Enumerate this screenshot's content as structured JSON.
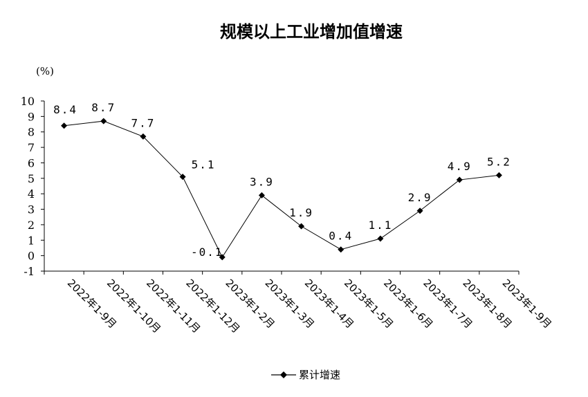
{
  "chart_data": {
    "type": "line",
    "title": "规模以上工业增加值增速",
    "unit_label": "(%)",
    "categories": [
      "2022年1-9月",
      "2022年1-10月",
      "2022年1-11月",
      "2022年1-12月",
      "2023年1-2月",
      "2023年1-3月",
      "2023年1-4月",
      "2023年1-5月",
      "2023年1-6月",
      "2023年1-7月",
      "2023年1-8月",
      "2023年1-9月"
    ],
    "series": [
      {
        "name": "累计增速",
        "values": [
          8.4,
          8.7,
          7.7,
          5.1,
          -0.1,
          3.9,
          1.9,
          0.4,
          1.1,
          2.9,
          4.9,
          5.2
        ],
        "data_labels": [
          "8.4",
          "8.7",
          "7.7",
          "5.1",
          "-0.1",
          "3.9",
          "1.9",
          "0.4",
          "1.1",
          "2.9",
          "4.9",
          "5.2"
        ]
      }
    ],
    "ylim": [
      -1,
      10
    ],
    "yticks": [
      "-1",
      "0",
      "1",
      "2",
      "3",
      "4",
      "5",
      "6",
      "7",
      "8",
      "9",
      "10"
    ],
    "grid": false,
    "legend_position": "bottom",
    "line_color": "#000000"
  }
}
